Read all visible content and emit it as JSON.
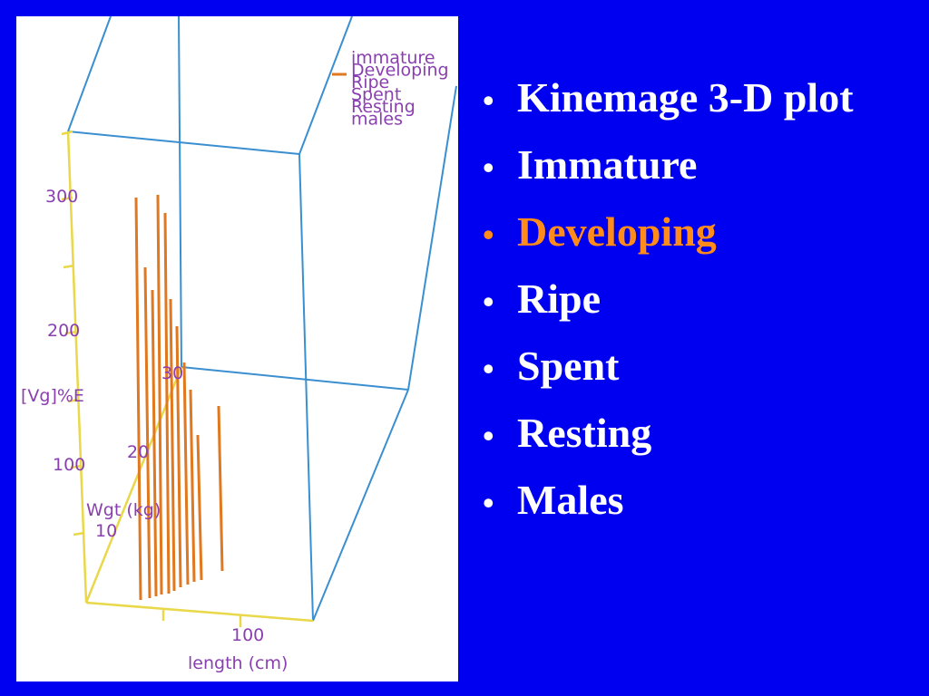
{
  "plot": {
    "axis": {
      "y_ticks": [
        "300",
        "200",
        "100"
      ],
      "y_label": "[Vg]%E",
      "z_ticks": [
        "10",
        "20",
        "30"
      ],
      "z_label": "Wgt (kg)",
      "x_ticks": [
        "100"
      ],
      "x_label": "length (cm)"
    },
    "legend": [
      "immature",
      "Developing",
      "Ripe",
      "Spent",
      "Resting",
      "males"
    ]
  },
  "bullets": [
    "Kinemage 3-D plot",
    "Immature",
    "Developing",
    "Ripe",
    "Spent",
    "Resting",
    "Males"
  ]
}
